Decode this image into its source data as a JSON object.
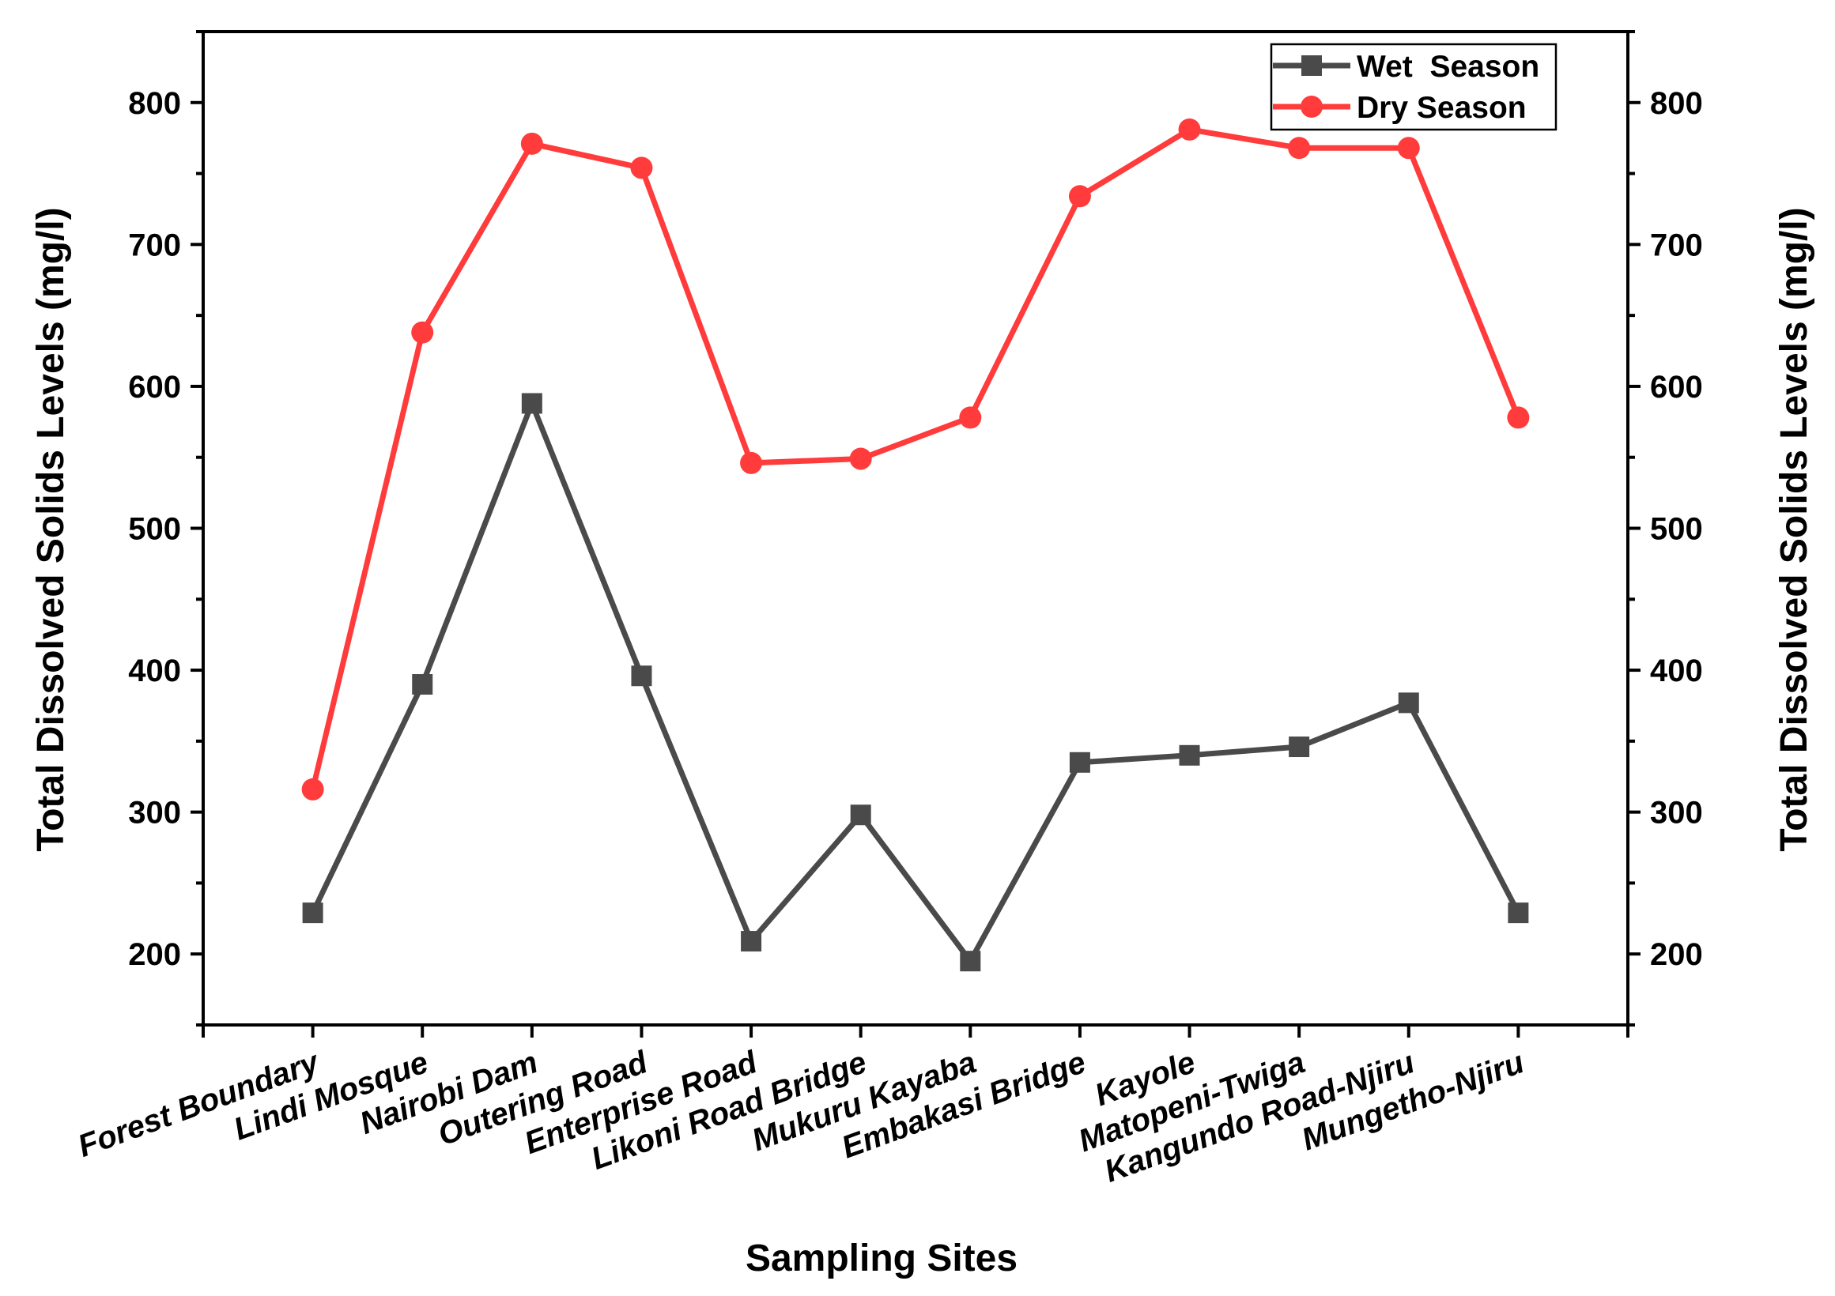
{
  "chart_data": {
    "type": "line",
    "title": "",
    "xlabel": "Sampling Sites",
    "ylabel": "Total Dissolved Solids Levels (mg/l)",
    "ylabel_right": "Total Dissolved Solids Levels (mg/l)",
    "ylim": [
      150,
      850
    ],
    "yticks": [
      200,
      300,
      400,
      500,
      600,
      700,
      800
    ],
    "grid": false,
    "legend_position": "top-right",
    "categories": [
      "Forest Boundary",
      "Lindi Mosque",
      "Nairobi Dam",
      "Outering Road",
      "Enterprise Road",
      "Likoni Road Bridge",
      "Mukuru Kayaba",
      "Embakasi Bridge",
      "Kayole",
      "Matopeni-Twiga",
      "Kangundo Road-Njiru",
      "Mungetho-Njiru"
    ],
    "series": [
      {
        "name": "Wet  Season",
        "color": "#4a4a4a",
        "marker": "square",
        "values": [
          229,
          390,
          588,
          396,
          209,
          298,
          195,
          335,
          340,
          346,
          377,
          229
        ]
      },
      {
        "name": "Dry Season",
        "color": "#ff3b3b",
        "marker": "circle",
        "values": [
          316,
          638,
          771,
          754,
          546,
          549,
          578,
          734,
          781,
          768,
          768,
          578
        ]
      }
    ]
  }
}
